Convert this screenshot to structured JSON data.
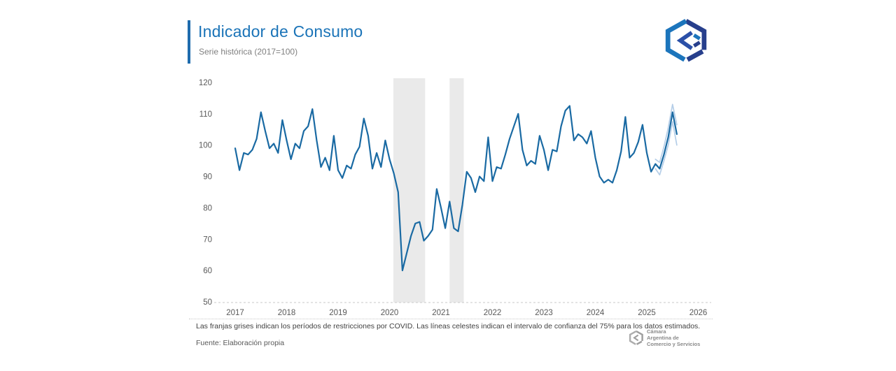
{
  "header": {
    "title": "Indicador de Consumo",
    "subtitle": "Serie histórica (2017=100)"
  },
  "chart_data": {
    "type": "line",
    "title": "Indicador de Consumo",
    "subtitle": "Serie histórica (2017=100)",
    "frequency": "monthly",
    "start_period": "2017-01",
    "end_period": "2025-08",
    "x_tick_labels": [
      "2017",
      "2018",
      "2019",
      "2020",
      "2021",
      "2022",
      "2023",
      "2024",
      "2025",
      "2026"
    ],
    "y_ticks": [
      120,
      110,
      100,
      90,
      80,
      70,
      60,
      50
    ],
    "ylim": [
      50,
      120
    ],
    "grid": false,
    "legend_position": "none",
    "series": [
      {
        "name": "Indicador de Consumo",
        "color_key": "line",
        "start_month_index": 0,
        "values": [
          99,
          92,
          97.5,
          97,
          98.5,
          102,
          110.5,
          104.5,
          99,
          100.5,
          97.5,
          108,
          101.5,
          95.5,
          100.5,
          99,
          104.5,
          106,
          111.5,
          101.5,
          93,
          96,
          92,
          103,
          92,
          89.5,
          93.5,
          92.5,
          97,
          99.5,
          108.5,
          103,
          92.5,
          97.5,
          93,
          101.5,
          95.5,
          91,
          85,
          60,
          65.5,
          71,
          75,
          75.5,
          69.5,
          71,
          73,
          86,
          80,
          73.5,
          82,
          73.5,
          72.5,
          81,
          91.5,
          89.5,
          85,
          90,
          88.5,
          102.5,
          88.5,
          93,
          92.5,
          97,
          102,
          106,
          110,
          98.5,
          93.5,
          95,
          94,
          103,
          98.5,
          92,
          98.5,
          98,
          106,
          111,
          112.5,
          101.5,
          103.5,
          102.5,
          100.5,
          104.5,
          96,
          90,
          88,
          89,
          88,
          92,
          98,
          109,
          96,
          97.5,
          101,
          106.5,
          97.5,
          91.5,
          94,
          92.5,
          97,
          102.5,
          110.5,
          103.5
        ]
      },
      {
        "name": "Intervalo de confianza 75% (superior)",
        "color_key": "confidence",
        "start_month_index": 98,
        "values": [
          95.5,
          94.5,
          99.5,
          105.5,
          113,
          106.5
        ]
      },
      {
        "name": "Intervalo de confianza 75% (inferior)",
        "color_key": "confidence",
        "start_month_index": 98,
        "values": [
          92.5,
          90.5,
          95,
          100,
          107.5,
          100
        ]
      }
    ],
    "covid_restriction_bands": [
      {
        "label": "Restricciones COVID",
        "from_period": "2020-03",
        "to_period": "2020-09",
        "from_month_index": 36.9,
        "to_month_index": 44.3
      },
      {
        "label": "Restricciones COVID",
        "from_period": "2021-03",
        "to_period": "2021-05",
        "from_month_index": 50.0,
        "to_month_index": 53.3
      }
    ]
  },
  "footer": {
    "note": "Las franjas grises indican los períodos de restricciones por COVID. Las líneas celestes indican el intervalo de confianza del 75% para los datos estimados.",
    "source": "Fuente: Elaboración propia",
    "logo_line1": "Cámara",
    "logo_line2": "Argentina de",
    "logo_line3": "Comercio y Servicios"
  },
  "colors": {
    "accent": "#1E6BAD",
    "title": "#1B74B8",
    "line": "#1A6AA3",
    "confidence": "#B5CEE8",
    "band": "#EAEAEA",
    "axis_text": "#595959",
    "axis_line": "#C9C9C9",
    "note_text": "#3F3F3F",
    "logo_navy": "#273F8C",
    "logo_blue": "#1C75BC",
    "logo_gray": "#9E9E9E"
  }
}
